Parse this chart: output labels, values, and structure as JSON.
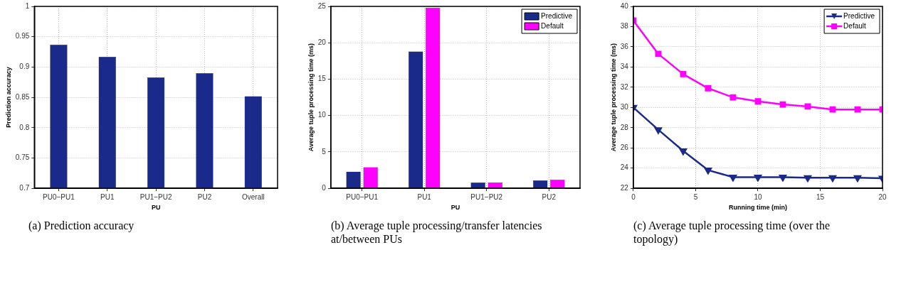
{
  "chart_data": [
    {
      "type": "bar",
      "xlabel": "PU",
      "ylabel": "Prediction accuracy",
      "annotations": [
        "(a) Prediction accuracy"
      ],
      "categories": [
        "PU0−PU1",
        "PU1",
        "PU1−PU2",
        "PU2",
        "Overall"
      ],
      "series": [
        {
          "color": "#1a2a8a",
          "values": [
            0.937,
            0.917,
            0.883,
            0.89,
            0.852
          ]
        }
      ],
      "ylim": [
        0.7,
        1
      ],
      "yticks": [
        0.7,
        0.75,
        0.8,
        0.85,
        0.9,
        0.95,
        1
      ],
      "grid": true,
      "legend": false
    },
    {
      "type": "bar",
      "xlabel": "PU",
      "ylabel": "Average tuple processing time (ms)",
      "annotations": [
        "(b) Average tuple processing/transfer latencies at/between PUs"
      ],
      "categories": [
        "PU0−PU1",
        "PU1",
        "PU1−PU2",
        "PU2"
      ],
      "series": [
        {
          "name": "Predictive",
          "color": "#1a2a8a",
          "values": [
            2.3,
            18.8,
            0.8,
            1.1
          ]
        },
        {
          "name": "Default",
          "color": "#ff00ff",
          "values": [
            2.9,
            24.8,
            0.8,
            1.2
          ]
        }
      ],
      "ylim": [
        0,
        25
      ],
      "yticks": [
        0,
        5,
        10,
        15,
        20,
        25
      ],
      "grid": true,
      "legend": "top right"
    },
    {
      "type": "line",
      "xlabel": "Running time (min)",
      "ylabel": "Average tuple processing time (ms)",
      "annotations": [
        "(c) Average tuple processing time (over the topology)"
      ],
      "x": [
        0,
        2,
        4,
        6,
        8,
        10,
        12,
        14,
        16,
        18,
        20
      ],
      "series": [
        {
          "name": "Predictive",
          "color": "#1a2a8a",
          "marker": "triangle",
          "values": [
            30,
            27.8,
            25.7,
            23.8,
            23.1,
            23.1,
            23.1,
            23.05,
            23.05,
            23.05,
            23.0
          ]
        },
        {
          "name": "Default",
          "color": "#ff00ff",
          "marker": "square",
          "values": [
            38.6,
            35.3,
            33.3,
            31.9,
            31.0,
            30.6,
            30.3,
            30.1,
            29.8,
            29.8,
            29.8
          ]
        }
      ],
      "xlim": [
        0,
        20
      ],
      "xticks": [
        0,
        5,
        10,
        15,
        20
      ],
      "ylim": [
        22,
        40
      ],
      "yticks": [
        22,
        24,
        26,
        28,
        30,
        32,
        34,
        36,
        38,
        40
      ],
      "grid": true,
      "legend": "top right"
    }
  ]
}
